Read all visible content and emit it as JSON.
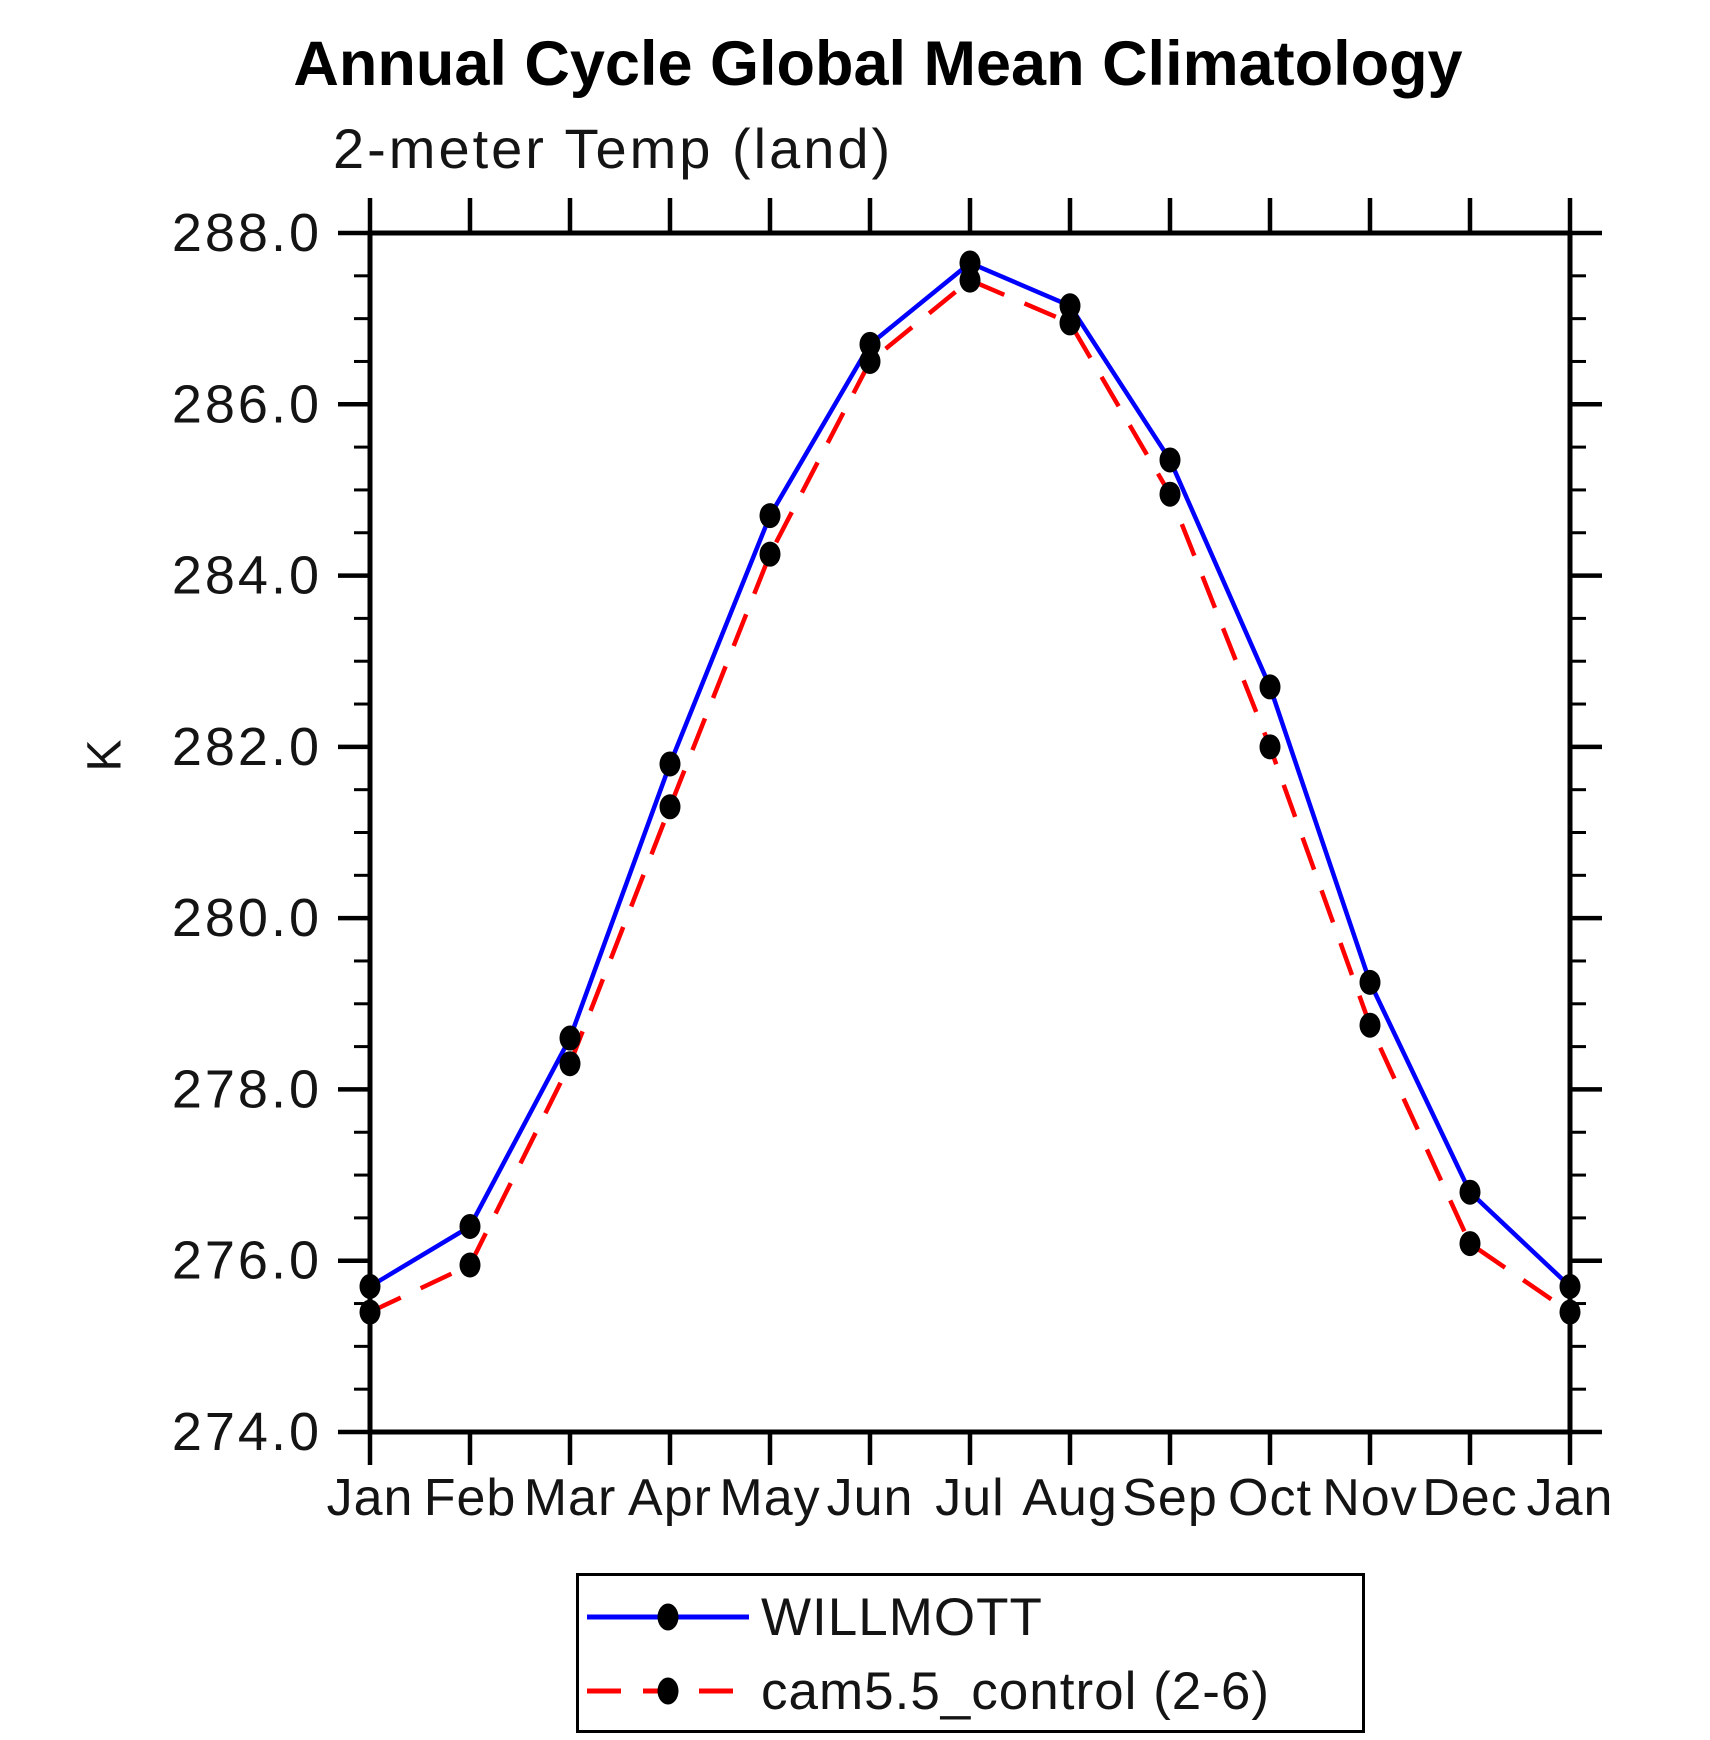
{
  "title": "Annual Cycle Global Mean Climatology",
  "subtitle": "2-meter Temp (land)",
  "chart_data": {
    "type": "line",
    "categories": [
      "Jan",
      "Feb",
      "Mar",
      "Apr",
      "May",
      "Jun",
      "Jul",
      "Aug",
      "Sep",
      "Oct",
      "Nov",
      "Dec",
      "Jan"
    ],
    "xlabel": "",
    "ylabel": "K",
    "ylim": [
      274.0,
      288.0
    ],
    "ytick_interval": 2.0,
    "yminor_interval": 0.5,
    "ytick_labels": [
      "274.0",
      "276.0",
      "278.0",
      "280.0",
      "282.0",
      "284.0",
      "286.0",
      "288.0"
    ],
    "grid": false,
    "legend_position": "bottom-center",
    "frame_color": "#000000",
    "marker_color": "#000000",
    "series": [
      {
        "name": "WILLMOTT",
        "color": "#0000ff",
        "line_style": "solid",
        "marker": "filled-circle",
        "values": [
          275.7,
          276.4,
          278.6,
          281.8,
          284.7,
          286.7,
          287.65,
          287.15,
          285.35,
          282.7,
          279.25,
          276.8,
          275.7
        ]
      },
      {
        "name": "cam5.5_control (2-6)",
        "color": "#ff0000",
        "line_style": "dashed",
        "marker": "filled-circle",
        "values": [
          275.4,
          275.95,
          278.3,
          281.3,
          284.25,
          286.5,
          287.45,
          286.95,
          284.95,
          282.0,
          278.75,
          276.2,
          275.4
        ]
      }
    ]
  }
}
